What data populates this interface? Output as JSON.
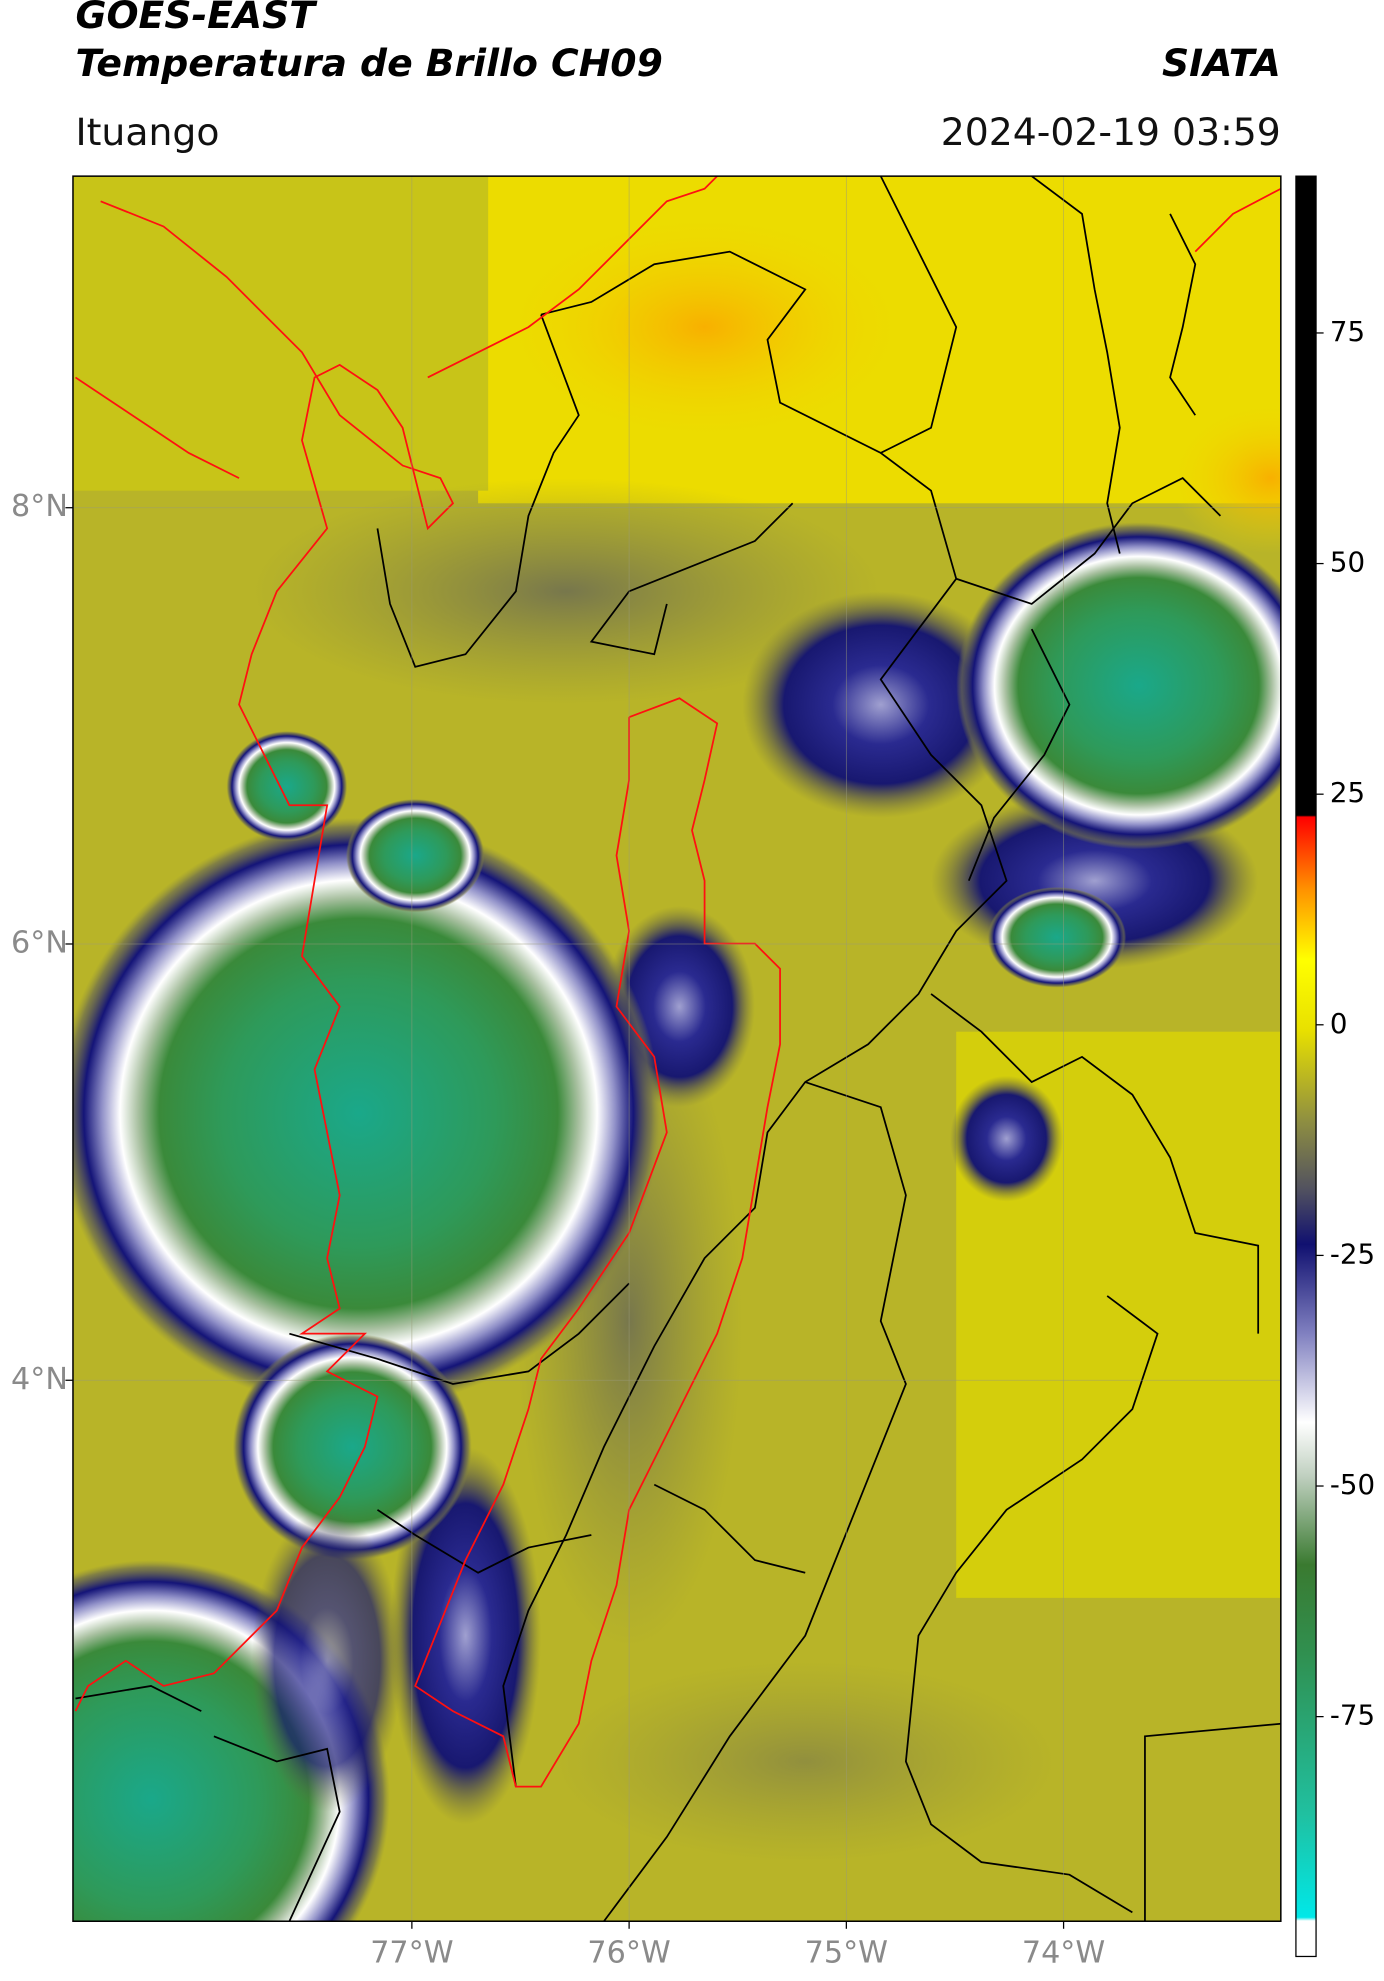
{
  "header": {
    "title": "GOES-EAST",
    "subtitle": "Temperatura de Brillo CH09",
    "source": "SIATA",
    "location": "Ituango",
    "timestamp": "2024-02-19 03:59"
  },
  "map": {
    "xlim": [
      -78.56,
      -73.0
    ],
    "ylim": [
      1.52,
      9.52
    ],
    "xticks": [
      {
        "value": -77,
        "label": "77°W"
      },
      {
        "value": -76,
        "label": "76°W"
      },
      {
        "value": -75,
        "label": "75°W"
      },
      {
        "value": -74,
        "label": "74°W"
      }
    ],
    "yticks": [
      {
        "value": 8,
        "label": "8°N"
      },
      {
        "value": 6,
        "label": "6°N"
      },
      {
        "value": 4,
        "label": "4°N"
      }
    ],
    "grid": true
  },
  "colorbar": {
    "lim": [
      -101,
      92
    ],
    "ticks": [
      75,
      50,
      25,
      0,
      -25,
      -50,
      -75
    ]
  }
}
